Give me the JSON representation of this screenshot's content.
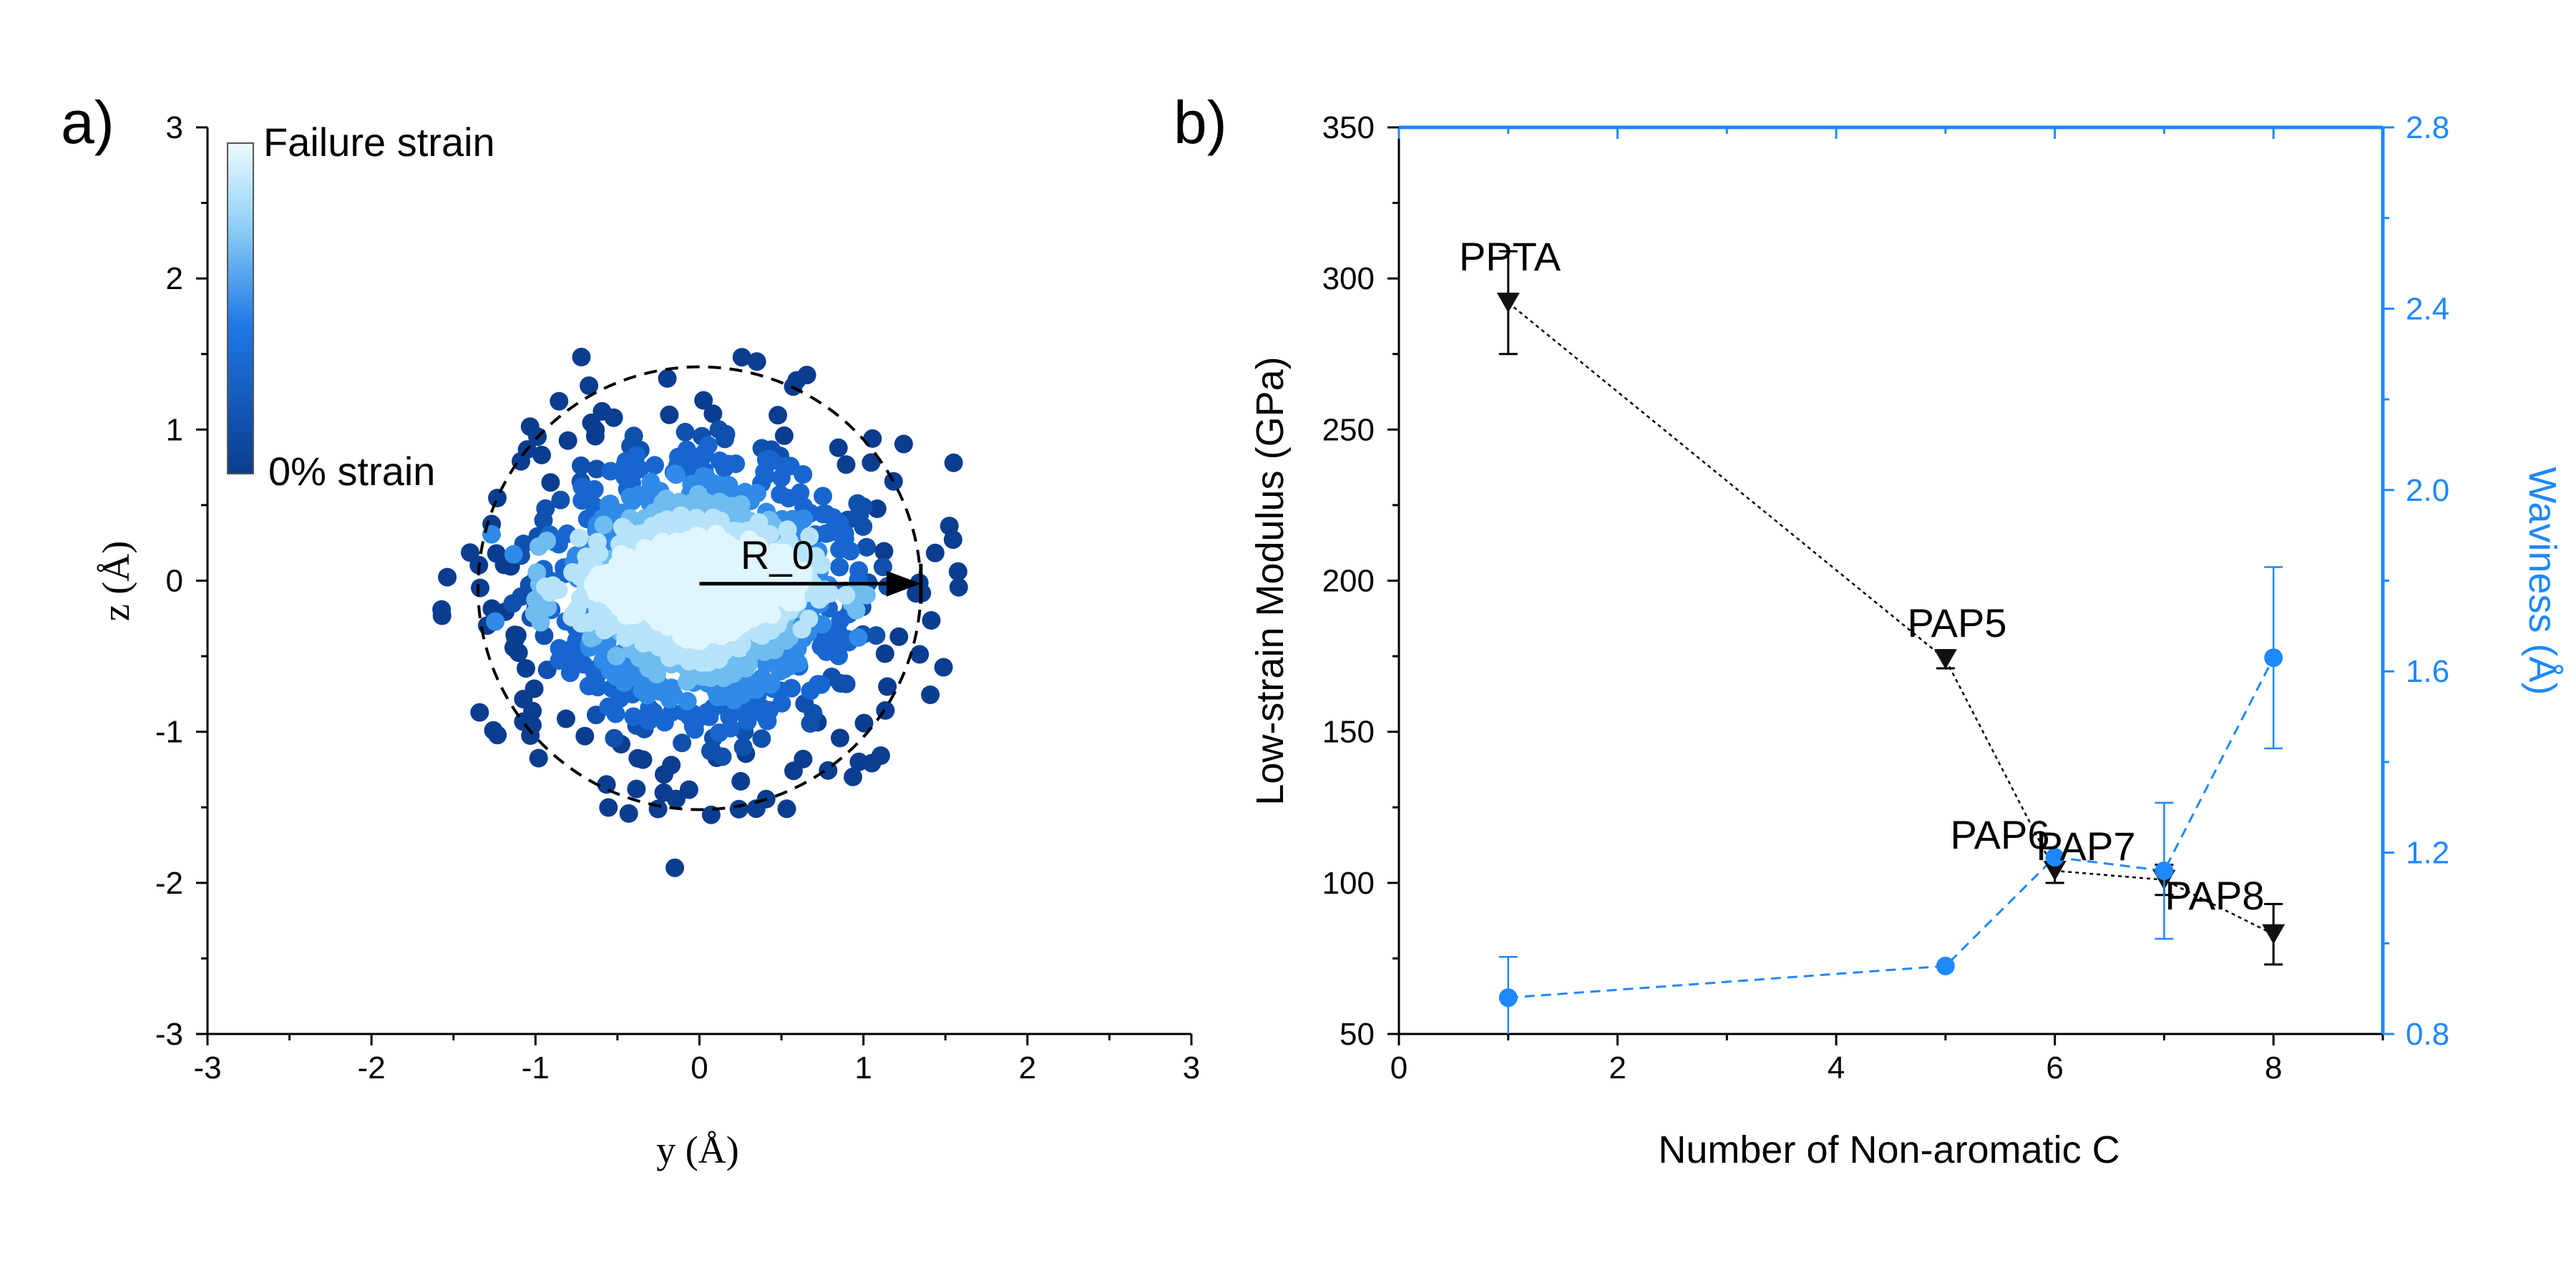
{
  "panel_a": {
    "label": "a)",
    "colorbar": {
      "top_label": "Failure strain",
      "bottom_label": "0% strain"
    },
    "annotation": "R_0"
  },
  "panel_b": {
    "label": "b)"
  },
  "colors": {
    "left_axis": "#000000",
    "right_axis": "#1e88ff",
    "cloud_dark": "#0a3d8f",
    "cloud_light": "#dff5ff"
  },
  "chart_data": [
    {
      "type": "scatter",
      "xlabel": "y (Å)",
      "ylabel": "z (Å)",
      "xlim": [
        -3,
        3
      ],
      "ylim": [
        -3,
        3
      ],
      "xticks": [
        "-3",
        "-2",
        "-1",
        "0",
        "1",
        "2",
        "3"
      ],
      "yticks": [
        "-3",
        "-2",
        "-1",
        "0",
        "1",
        "2",
        "3"
      ],
      "colorbar": {
        "from": "0% strain",
        "to": "Failure strain"
      },
      "reference_circle_radius": 1.35,
      "cloud_center": [
        0.0,
        -0.05
      ],
      "arrow": {
        "label": "R_0",
        "from": [
          0.0,
          -0.02
        ],
        "to": [
          1.35,
          -0.02
        ]
      },
      "outliers": [
        [
          -0.15,
          -1.9
        ],
        [
          1.55,
          0.78
        ],
        [
          -0.72,
          1.48
        ],
        [
          0.35,
          1.45
        ]
      ]
    },
    {
      "type": "line",
      "xlabel": "Number of Non-aromatic C",
      "ylabel": "Low-strain Modulus (GPa)",
      "ylabel_right": "Waviness (Å)",
      "xlim": [
        0,
        9
      ],
      "ylim": [
        50,
        350
      ],
      "ylim_right": [
        0.8,
        2.8
      ],
      "xticks": [
        "0",
        "2",
        "4",
        "6",
        "8"
      ],
      "yticks": [
        "50",
        "100",
        "150",
        "200",
        "250",
        "300",
        "350"
      ],
      "yticks_right": [
        "0.8",
        "1.2",
        "1.6",
        "2.0",
        "2.4",
        "2.8"
      ],
      "series": [
        {
          "axis": "left",
          "x": [
            1,
            5,
            6,
            7,
            8
          ],
          "values": [
            292,
            174,
            104,
            101,
            83
          ],
          "errors": [
            17,
            3,
            4,
            5,
            10
          ],
          "labels": [
            "PPTA",
            "PAP5",
            "PAP6",
            "PAP7",
            "PAP8"
          ]
        },
        {
          "axis": "right",
          "x": [
            1,
            5,
            6,
            7,
            8
          ],
          "values": [
            0.88,
            0.95,
            1.19,
            1.16,
            1.63
          ],
          "errors": [
            0.09,
            0.0,
            0.0,
            0.15,
            0.2
          ]
        }
      ]
    }
  ]
}
